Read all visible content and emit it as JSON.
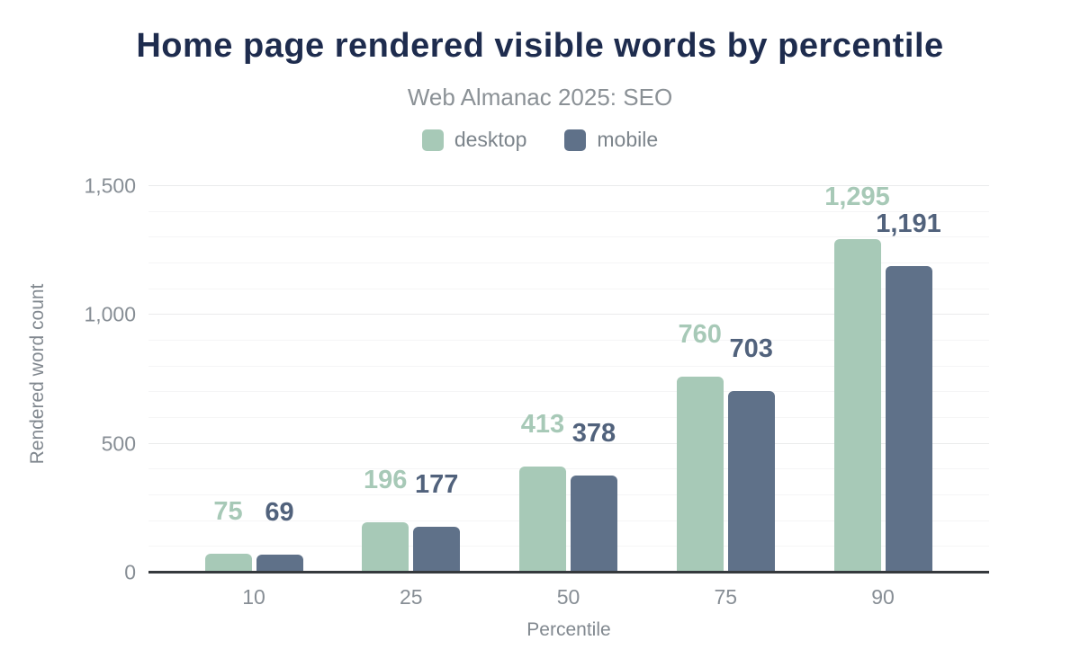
{
  "header": {
    "title": "Home page rendered visible words by percentile",
    "subtitle": "Web Almanac 2025: SEO"
  },
  "chart_data": {
    "type": "bar",
    "title": "Home page rendered visible words by percentile",
    "subtitle": "Web Almanac 2025: SEO",
    "categories": [
      "10",
      "25",
      "50",
      "75",
      "90"
    ],
    "series": [
      {
        "name": "desktop",
        "color": "#a7c9b7",
        "label_color": "#a7c9b7",
        "values": [
          75,
          196,
          413,
          760,
          1295
        ],
        "value_labels": [
          "75",
          "196",
          "413",
          "760",
          "1,295"
        ]
      },
      {
        "name": "mobile",
        "color": "#5f7189",
        "label_color": "#51627c",
        "values": [
          69,
          177,
          378,
          703,
          1191
        ],
        "value_labels": [
          "69",
          "177",
          "378",
          "703",
          "1,191"
        ]
      }
    ],
    "xlabel": "Percentile",
    "ylabel": "Rendered word count",
    "ylim": [
      0,
      1500
    ],
    "yticks": [
      {
        "value": 0,
        "label": "0"
      },
      {
        "value": 500,
        "label": "500"
      },
      {
        "value": 1000,
        "label": "1,000"
      },
      {
        "value": 1500,
        "label": "1,500"
      }
    ],
    "minor_grid_step": 100,
    "major_grid_step": 500,
    "grid": true,
    "legend_position": "top",
    "colors": {
      "title": "#1e2c4e",
      "subtitle": "#8b9196",
      "legend_text": "#7c848b",
      "tick_text": "#878e95",
      "axis_title_text": "#81888f",
      "axis_line": "#35393d"
    }
  }
}
